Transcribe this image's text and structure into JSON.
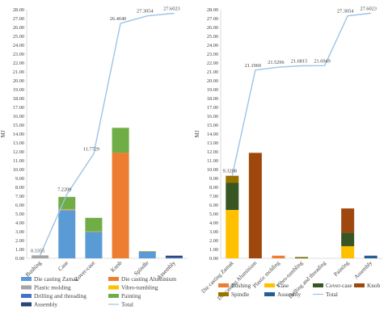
{
  "chart_data": [
    {
      "type": "bar",
      "stacked": true,
      "ylabel": "MJ",
      "ylim": [
        0,
        28
      ],
      "ytick_step": 1,
      "grid": false,
      "legend_position": "bottom",
      "categories": [
        "Bushing",
        "Case",
        "Cover-case",
        "Knob",
        "Spindle",
        "Assembly"
      ],
      "series": [
        {
          "name": "Die casting Zamak",
          "color": "#5B9BD5",
          "values": [
            0,
            5.4,
            3.0,
            0,
            0.8,
            0
          ]
        },
        {
          "name": "Die casting Aluminium",
          "color": "#ED7D31",
          "values": [
            0,
            0,
            0,
            11.9,
            0,
            0
          ]
        },
        {
          "name": "Plastic molding",
          "color": "#A5A5A5",
          "values": [
            0.3355,
            0.1,
            0,
            0,
            0,
            0
          ]
        },
        {
          "name": "Vibro-tumbling",
          "color": "#FFC000",
          "values": [
            0,
            0.05,
            0.02,
            0,
            0.02,
            0
          ]
        },
        {
          "name": "Drilling and threading",
          "color": "#4472C4",
          "values": [
            0,
            0,
            0,
            0,
            0,
            0.1
          ]
        },
        {
          "name": "Painting",
          "color": "#70AD47",
          "values": [
            0,
            1.37,
            1.54,
            2.8,
            0,
            0
          ]
        },
        {
          "name": "Assembly",
          "color": "#264478",
          "values": [
            0,
            0,
            0,
            0,
            0,
            0.2
          ]
        }
      ],
      "total": {
        "name": "Total",
        "color": "#9DC3E6",
        "values": [
          0.3355,
          7.2209,
          11.7729,
          26.464,
          27.3054,
          27.6023
        ],
        "labels": [
          "0.3355",
          "7.2209",
          "11.7729",
          "26.4640",
          "27.3054",
          "27.6023"
        ]
      }
    },
    {
      "type": "bar",
      "stacked": true,
      "ylabel": "MJ",
      "ylim": [
        0,
        28
      ],
      "ytick_step": 1,
      "grid": false,
      "legend_position": "bottom",
      "categories": [
        "Die casting Zamak",
        "Die casting Aluminium",
        "Plastic molding",
        "Vibro-tumbling",
        "Drilling and threading",
        "Painting",
        "Assembly"
      ],
      "series": [
        {
          "name": "Bushing",
          "color": "#ED7D31",
          "values": [
            0,
            0,
            0.3,
            0,
            0,
            0,
            0
          ]
        },
        {
          "name": "Case",
          "color": "#FFC000",
          "values": [
            5.45,
            0,
            0,
            0.02,
            0,
            1.37,
            0
          ]
        },
        {
          "name": "Cover-case",
          "color": "#375623",
          "values": [
            3.05,
            0,
            0,
            0.1,
            0,
            1.5,
            0
          ]
        },
        {
          "name": "Knob",
          "color": "#9E480E",
          "values": [
            0,
            11.88,
            0,
            0,
            0,
            2.75,
            0
          ]
        },
        {
          "name": "Spindle",
          "color": "#997300",
          "values": [
            0.8,
            0,
            0,
            0.03,
            0,
            0,
            0
          ]
        },
        {
          "name": "Assembly",
          "color": "#255E91",
          "values": [
            0,
            0,
            0,
            0,
            0,
            0,
            0.3
          ]
        }
      ],
      "total": {
        "name": "Total",
        "color": "#9DC3E6",
        "values": [
          9.3208,
          21.196,
          21.5296,
          21.6815,
          21.6949,
          27.3054,
          27.6023
        ],
        "labels": [
          "9.3208",
          "21.1960",
          "21.5296",
          "21.6815",
          "21.6949",
          "27.3054",
          "27.6023"
        ]
      }
    }
  ]
}
